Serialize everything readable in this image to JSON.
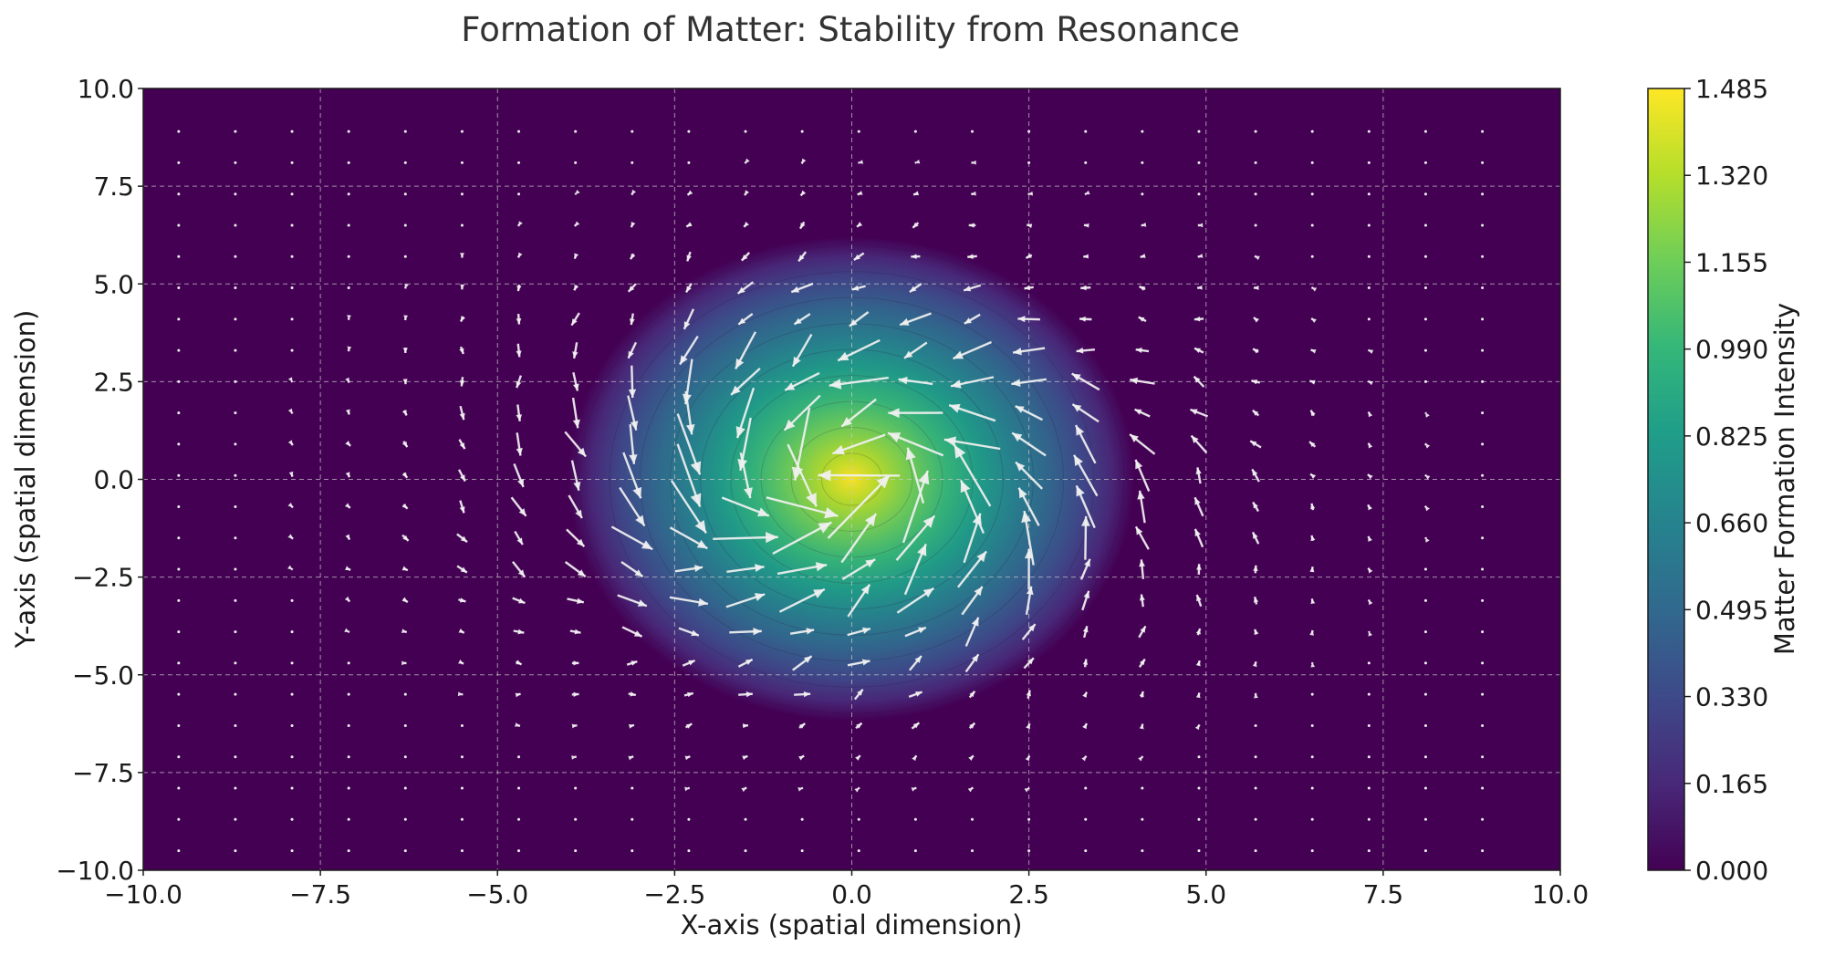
{
  "chart_data": {
    "type": "heatmap",
    "title": "Formation of Matter: Stability from Resonance",
    "xlabel": "X-axis (spatial dimension)",
    "ylabel": "Y-axis (spatial dimension)",
    "xlim": [
      -10.0,
      10.0
    ],
    "ylim": [
      -10.0,
      10.0
    ],
    "x_ticks": [
      "−10.0",
      "−7.5",
      "−5.0",
      "−2.5",
      "0.0",
      "2.5",
      "5.0",
      "7.5",
      "10.0"
    ],
    "y_ticks": [
      "−10.0",
      "−7.5",
      "−5.0",
      "−2.5",
      "0.0",
      "2.5",
      "5.0",
      "7.5",
      "10.0"
    ],
    "grid": true,
    "field": {
      "kind": "filled-contour",
      "shape": "gaussian",
      "peak": 1.5,
      "center": [
        0,
        0
      ],
      "spread": 2.5,
      "colormap": "viridis",
      "background_color": "#440154"
    },
    "vector_field": {
      "kind": "quiver",
      "pattern": "rotating spiral around origin",
      "grid_min": -9.5,
      "grid_max": 9.5,
      "grid_step": 0.8,
      "arrow_color": "#f0f0f0"
    },
    "colorbar": {
      "label": "Matter Formation Intensity",
      "ticks": [
        "0.000",
        "0.165",
        "0.330",
        "0.495",
        "0.660",
        "0.825",
        "0.990",
        "1.155",
        "1.320",
        "1.485"
      ],
      "range": [
        0,
        1.485
      ]
    }
  }
}
